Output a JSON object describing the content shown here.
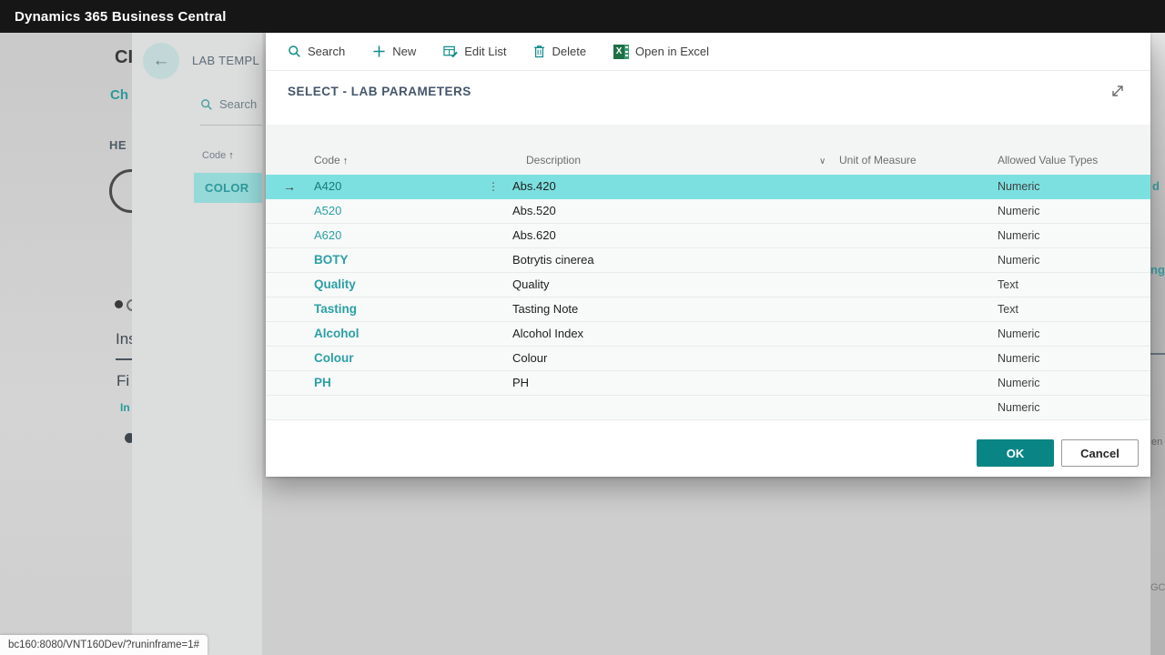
{
  "topbar": {
    "title": "Dynamics 365 Business Central"
  },
  "background": {
    "panel": {
      "title": "LAB TEMPL",
      "search_label": "Search",
      "code_header": "Code",
      "selected_code": "COLOR"
    },
    "fragments": {
      "ci": "CI",
      "ch": "Ch",
      "he": "HE",
      "ins": "Ins",
      "fi": "Fi",
      "in2": "In",
      "d": "d",
      "ng": "ng",
      "en": "en",
      "gc": "GC"
    },
    "status_url": "bc160:8080/VNT160Dev/?runinframe=1#"
  },
  "icons": {
    "sort_asc": "↑",
    "chevron_down": "∨",
    "row_arrow": "→",
    "ellipsis": "⋮",
    "back_arrow": "←",
    "excel_x": "X"
  },
  "dialog": {
    "toolbar": {
      "search": "Search",
      "new": "New",
      "edit_list": "Edit List",
      "delete": "Delete",
      "open_in_excel": "Open in Excel"
    },
    "title": "SELECT - LAB PARAMETERS",
    "table": {
      "columns": [
        "Code",
        "Description",
        "Unit of Measure",
        "Allowed Value Types"
      ],
      "rows": [
        {
          "code": "A420",
          "description": "Abs.420",
          "unit": "",
          "value_type": "Numeric",
          "selected": true
        },
        {
          "code": "A520",
          "description": "Abs.520",
          "unit": "",
          "value_type": "Numeric",
          "selected": false
        },
        {
          "code": "A620",
          "description": "Abs.620",
          "unit": "",
          "value_type": "Numeric",
          "selected": false
        },
        {
          "code": "BOTY",
          "description": "Botrytis cinerea",
          "unit": "",
          "value_type": "Numeric",
          "selected": false
        },
        {
          "code": "Quality",
          "description": "Quality",
          "unit": "",
          "value_type": "Text",
          "selected": false
        },
        {
          "code": "Tasting",
          "description": "Tasting Note",
          "unit": "",
          "value_type": "Text",
          "selected": false
        },
        {
          "code": "Alcohol",
          "description": "Alcohol Index",
          "unit": "",
          "value_type": "Numeric",
          "selected": false
        },
        {
          "code": "Colour",
          "description": "Colour",
          "unit": "",
          "value_type": "Numeric",
          "selected": false
        },
        {
          "code": "PH",
          "description": "PH",
          "unit": "",
          "value_type": "Numeric",
          "selected": false
        },
        {
          "code": "",
          "description": "",
          "unit": "",
          "value_type": "Numeric",
          "selected": false
        }
      ]
    },
    "buttons": {
      "ok": "OK",
      "cancel": "Cancel"
    }
  },
  "colors": {
    "accent": "#0f8a8a",
    "selection": "#7de0e0",
    "ok_button": "#0a8585",
    "excel_green": "#1e7145",
    "topbar_bg": "#161616"
  }
}
